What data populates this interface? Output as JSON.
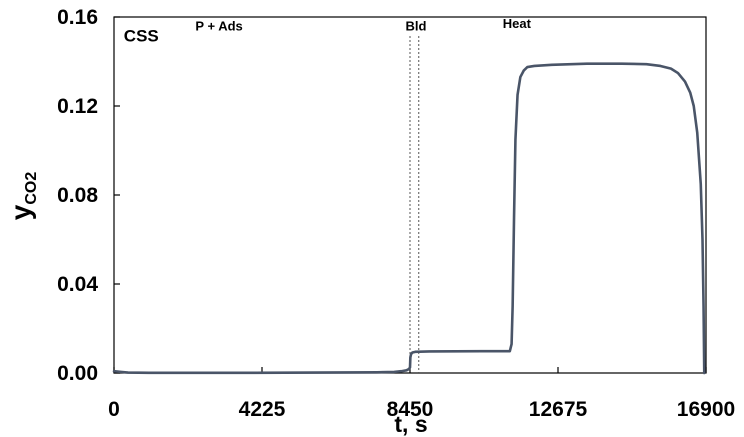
{
  "chart_data": {
    "type": "line",
    "title": "",
    "xlabel": "t, s",
    "ylabel_main": "y",
    "ylabel_sub": "CO2",
    "xlim": [
      0,
      16900
    ],
    "ylim": [
      0,
      0.16
    ],
    "xticks": [
      0,
      4225,
      8450,
      12675,
      16900
    ],
    "xtick_labels": [
      "0",
      "4225",
      "8450",
      "12675",
      "16900"
    ],
    "yticks": [
      0,
      0.04,
      0.08,
      0.12,
      0.16
    ],
    "ytick_labels": [
      "0.00",
      "0.04",
      "0.08",
      "0.12",
      "0.16"
    ],
    "grid": false,
    "line_color": "#4a5568",
    "annotations": [
      {
        "text": "CSS",
        "x": 280,
        "y": 0.149
      },
      {
        "text": "P + Ads",
        "x": 3000,
        "y": 0.154
      },
      {
        "text": "Bld",
        "x": 8620,
        "y": 0.154
      },
      {
        "text": "Heat",
        "x": 11500,
        "y": 0.155
      }
    ],
    "phase_lines": [
      8450,
      8700
    ],
    "series": [
      {
        "x": [
          0,
          200,
          400,
          1000,
          4000,
          7500,
          8000,
          8200,
          8350,
          8420,
          8450,
          8460,
          8480,
          8520,
          8600,
          9000,
          10500,
          11300,
          11350,
          11380,
          11420,
          11460,
          11520,
          11600,
          11700,
          11800,
          12000,
          12500,
          13500,
          14500,
          15200,
          15600,
          15900,
          16100,
          16300,
          16450,
          16550,
          16650,
          16750,
          16800,
          16830,
          16850
        ],
        "y": [
          0.0008,
          0.0005,
          0.0002,
          0.0001,
          0.0001,
          0.0003,
          0.0005,
          0.0008,
          0.0012,
          0.0018,
          0.0025,
          0.007,
          0.0085,
          0.0092,
          0.0095,
          0.0097,
          0.0098,
          0.0098,
          0.013,
          0.03,
          0.07,
          0.105,
          0.125,
          0.133,
          0.136,
          0.1375,
          0.138,
          0.1385,
          0.139,
          0.139,
          0.1388,
          0.138,
          0.1368,
          0.1348,
          0.131,
          0.126,
          0.12,
          0.108,
          0.085,
          0.06,
          0.03,
          0.0
        ]
      }
    ]
  }
}
